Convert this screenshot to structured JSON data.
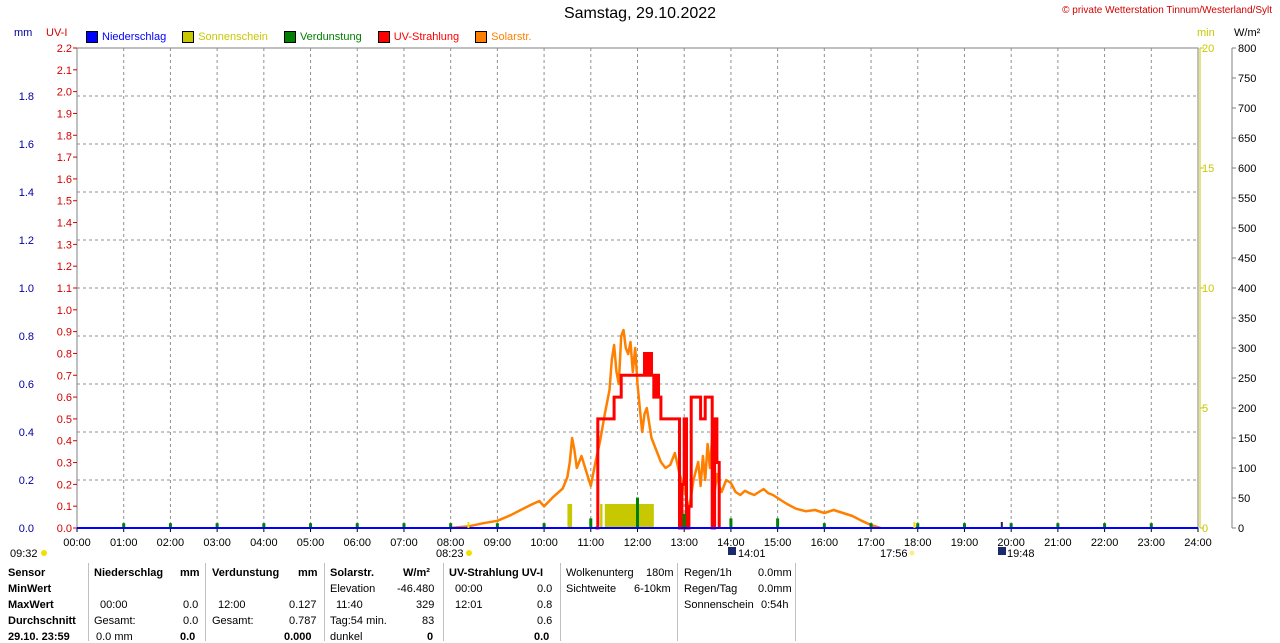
{
  "title": "Samstag, 29.10.2022",
  "copyright": "© private Wetterstation Tinnum/Westerland/Sylt",
  "colors": {
    "rain": "#0000ff",
    "sunshine": "#c8c800",
    "evaporation": "#008000",
    "uv": "#ff0000",
    "solar": "#ff8000"
  },
  "legend": [
    {
      "label": "Niederschlag",
      "color": "#0000ff"
    },
    {
      "label": "Sonnenschein",
      "color": "#c8c800"
    },
    {
      "label": "Verdunstung",
      "color": "#008000"
    },
    {
      "label": "UV-Strahlung",
      "color": "#ff0000"
    },
    {
      "label": "Solarstr.",
      "color": "#ff8000"
    }
  ],
  "units": {
    "mm": "mm",
    "uv": "UV-I",
    "min": "min",
    "wm2": "W/m²"
  },
  "time_markers": {
    "left": "09:32",
    "sunrise": "08:23",
    "moon": "14:01",
    "sunset": "17:56",
    "moonset": "19:48"
  },
  "chart_data": {
    "type": "line",
    "x_ticks": [
      "00:00",
      "01:00",
      "02:00",
      "03:00",
      "04:00",
      "05:00",
      "06:00",
      "07:00",
      "08:00",
      "09:00",
      "10:00",
      "11:00",
      "12:00",
      "13:00",
      "14:00",
      "15:00",
      "16:00",
      "17:00",
      "18:00",
      "19:00",
      "20:00",
      "21:00",
      "22:00",
      "23:00",
      "24:00"
    ],
    "xlim": [
      0,
      24
    ],
    "axes": {
      "mm": {
        "ylim": [
          0,
          2.0
        ],
        "ticks": [
          "0.0",
          "0.2",
          "0.4",
          "0.6",
          "0.8",
          "1.0",
          "1.2",
          "1.4",
          "1.6",
          "1.8"
        ]
      },
      "uv": {
        "ylim": [
          0,
          2.2
        ],
        "ticks": [
          "0.0",
          "0.1",
          "0.2",
          "0.3",
          "0.4",
          "0.5",
          "0.6",
          "0.7",
          "0.8",
          "0.9",
          "1.0",
          "1.1",
          "1.2",
          "1.3",
          "1.4",
          "1.5",
          "1.6",
          "1.7",
          "1.8",
          "1.9",
          "2.0",
          "2.1",
          "2.2"
        ]
      },
      "min": {
        "ylim": [
          0,
          20
        ],
        "ticks": [
          "0",
          "5",
          "10",
          "15",
          "20"
        ]
      },
      "wm2": {
        "ylim": [
          0,
          800
        ],
        "ticks": [
          "0",
          "50",
          "100",
          "150",
          "200",
          "250",
          "300",
          "350",
          "400",
          "450",
          "500",
          "550",
          "600",
          "650",
          "700",
          "750",
          "800"
        ]
      }
    },
    "series": [
      {
        "name": "Solarstr.",
        "axis": "wm2",
        "points": [
          [
            8.0,
            0
          ],
          [
            8.4,
            3
          ],
          [
            8.7,
            8
          ],
          [
            9.0,
            12
          ],
          [
            9.3,
            22
          ],
          [
            9.5,
            30
          ],
          [
            9.7,
            38
          ],
          [
            9.9,
            45
          ],
          [
            10.0,
            36
          ],
          [
            10.2,
            52
          ],
          [
            10.4,
            66
          ],
          [
            10.5,
            85
          ],
          [
            10.55,
            110
          ],
          [
            10.6,
            150
          ],
          [
            10.65,
            130
          ],
          [
            10.7,
            100
          ],
          [
            10.8,
            120
          ],
          [
            10.9,
            95
          ],
          [
            11.0,
            70
          ],
          [
            11.1,
            110
          ],
          [
            11.2,
            145
          ],
          [
            11.3,
            190
          ],
          [
            11.4,
            230
          ],
          [
            11.45,
            280
          ],
          [
            11.5,
            305
          ],
          [
            11.55,
            260
          ],
          [
            11.6,
            240
          ],
          [
            11.65,
            320
          ],
          [
            11.7,
            330
          ],
          [
            11.75,
            300
          ],
          [
            11.8,
            290
          ],
          [
            11.85,
            310
          ],
          [
            11.9,
            260
          ],
          [
            11.95,
            300
          ],
          [
            12.0,
            240
          ],
          [
            12.05,
            200
          ],
          [
            12.1,
            160
          ],
          [
            12.15,
            190
          ],
          [
            12.2,
            200
          ],
          [
            12.3,
            150
          ],
          [
            12.4,
            130
          ],
          [
            12.5,
            110
          ],
          [
            12.6,
            100
          ],
          [
            12.7,
            105
          ],
          [
            12.8,
            125
          ],
          [
            12.9,
            90
          ],
          [
            13.0,
            65
          ],
          [
            13.05,
            50
          ],
          [
            13.1,
            30
          ],
          [
            13.2,
            80
          ],
          [
            13.3,
            110
          ],
          [
            13.35,
            70
          ],
          [
            13.4,
            120
          ],
          [
            13.45,
            80
          ],
          [
            13.5,
            140
          ],
          [
            13.55,
            100
          ],
          [
            13.6,
            150
          ],
          [
            13.65,
            60
          ],
          [
            13.7,
            90
          ],
          [
            13.75,
            70
          ],
          [
            13.8,
            60
          ],
          [
            13.9,
            80
          ],
          [
            14.0,
            75
          ],
          [
            14.1,
            60
          ],
          [
            14.2,
            55
          ],
          [
            14.3,
            62
          ],
          [
            14.4,
            58
          ],
          [
            14.5,
            55
          ],
          [
            14.6,
            60
          ],
          [
            14.7,
            65
          ],
          [
            14.8,
            58
          ],
          [
            14.9,
            55
          ],
          [
            15.0,
            50
          ],
          [
            15.2,
            40
          ],
          [
            15.4,
            32
          ],
          [
            15.6,
            28
          ],
          [
            15.8,
            30
          ],
          [
            16.0,
            25
          ],
          [
            16.2,
            30
          ],
          [
            16.4,
            25
          ],
          [
            16.6,
            20
          ],
          [
            16.8,
            12
          ],
          [
            17.0,
            5
          ],
          [
            17.2,
            0
          ]
        ]
      },
      {
        "name": "UV-Strahlung",
        "axis": "uv",
        "points": [
          [
            11.1,
            0
          ],
          [
            11.15,
            0.5
          ],
          [
            11.45,
            0.5
          ],
          [
            11.5,
            0.6
          ],
          [
            11.6,
            0.6
          ],
          [
            11.65,
            0.7
          ],
          [
            12.1,
            0.7
          ],
          [
            12.15,
            0.8
          ],
          [
            12.2,
            0.7
          ],
          [
            12.25,
            0.8
          ],
          [
            12.3,
            0.7
          ],
          [
            12.35,
            0.6
          ],
          [
            12.4,
            0.7
          ],
          [
            12.45,
            0.6
          ],
          [
            12.5,
            0.5
          ],
          [
            12.6,
            0.5
          ],
          [
            12.7,
            0.5
          ],
          [
            12.8,
            0.5
          ],
          [
            12.85,
            0.5
          ],
          [
            12.9,
            0.0
          ],
          [
            12.95,
            0.2
          ],
          [
            13.0,
            0.5
          ],
          [
            13.05,
            0.0
          ],
          [
            13.1,
            0.1
          ],
          [
            13.15,
            0.6
          ],
          [
            13.3,
            0.6
          ],
          [
            13.35,
            0.5
          ],
          [
            13.45,
            0.6
          ],
          [
            13.55,
            0.6
          ],
          [
            13.6,
            0.0
          ],
          [
            13.65,
            0.5
          ],
          [
            13.7,
            0.3
          ],
          [
            13.75,
            0.0
          ]
        ]
      },
      {
        "name": "Sonnenschein",
        "axis": "min",
        "bars": [
          [
            10.5,
            10.6,
            1.0
          ],
          [
            11.2,
            11.25,
            1.0
          ],
          [
            11.3,
            12.35,
            1.0
          ]
        ]
      },
      {
        "name": "Verdunstung",
        "axis": "mm",
        "spikes": [
          [
            1.0,
            0.02
          ],
          [
            2.0,
            0.02
          ],
          [
            3.0,
            0.02
          ],
          [
            4.0,
            0.02
          ],
          [
            5.0,
            0.02
          ],
          [
            6.0,
            0.02
          ],
          [
            7.0,
            0.02
          ],
          [
            8.0,
            0.02
          ],
          [
            9.0,
            0.02
          ],
          [
            10.0,
            0.02
          ],
          [
            11.0,
            0.04
          ],
          [
            12.0,
            0.127
          ],
          [
            13.0,
            0.06
          ],
          [
            14.0,
            0.04
          ],
          [
            15.0,
            0.04
          ],
          [
            16.0,
            0.02
          ],
          [
            17.0,
            0.02
          ],
          [
            18.0,
            0.02
          ],
          [
            19.0,
            0.02
          ],
          [
            20.0,
            0.02
          ],
          [
            21.0,
            0.02
          ],
          [
            22.0,
            0.02
          ],
          [
            23.0,
            0.02
          ]
        ]
      }
    ]
  },
  "table": {
    "col1": {
      "rows": [
        "Sensor",
        "MinWert",
        "MaxWert",
        "Durchschnitt",
        "29.10. 23:59"
      ]
    },
    "niederschlag": {
      "header": "Niederschlag",
      "unit": "mm",
      "rows": [
        [
          "",
          ""
        ],
        [
          "00:00",
          "0.0"
        ],
        [
          "Gesamt:",
          "0.0"
        ],
        [
          "0.0 mm",
          "0.0"
        ]
      ]
    },
    "verdunstung": {
      "header": "Verdunstung",
      "unit": "mm",
      "rows": [
        [
          "",
          ""
        ],
        [
          "12:00",
          "0.127"
        ],
        [
          "Gesamt:",
          "0.787"
        ],
        [
          "",
          "0.000"
        ]
      ]
    },
    "solar": {
      "header": "Solarstr.",
      "unit": "W/m²",
      "rows": [
        [
          "Elevation",
          "-46.480"
        ],
        [
          "11:40",
          "329"
        ],
        [
          "Tag:54 min.",
          "83"
        ],
        [
          "dunkel",
          "0"
        ]
      ]
    },
    "uv": {
      "header": "UV-Strahlung UV-I",
      "rows": [
        [
          "00:00",
          "0.0"
        ],
        [
          "12:01",
          "0.8"
        ],
        [
          "",
          "0.6"
        ],
        [
          "",
          "0.0"
        ]
      ]
    },
    "cloud": {
      "rows": [
        [
          "Wolkenunterg",
          "180m"
        ],
        [
          "Sichtweite",
          "6-10km"
        ]
      ]
    },
    "rain": {
      "rows": [
        [
          "Regen/1h",
          "0.0mm"
        ],
        [
          "Regen/Tag",
          "0.0mm"
        ],
        [
          "Sonnenschein",
          "0:54h"
        ]
      ]
    }
  }
}
